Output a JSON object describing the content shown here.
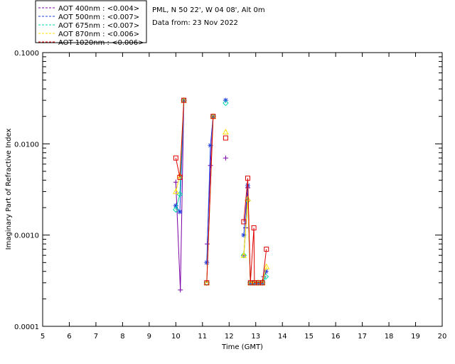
{
  "chart_data": {
    "type": "line",
    "title": "",
    "xlabel": "Time (GMT)",
    "ylabel": "Imaginary Part of Refractive Index",
    "xlim": [
      5,
      20
    ],
    "ylim": [
      0.0001,
      0.1
    ],
    "yscale": "log",
    "x_ticks": [
      "5",
      "6",
      "7",
      "8",
      "9",
      "10",
      "11",
      "12",
      "13",
      "14",
      "15",
      "16",
      "17",
      "18",
      "19",
      "20"
    ],
    "y_ticks": [
      {
        "value": 0.0001,
        "label": "0.0001"
      },
      {
        "value": 0.001,
        "label": "0.0010"
      },
      {
        "value": 0.01,
        "label": "0.0100"
      },
      {
        "value": 0.1,
        "label": "0.1000"
      }
    ],
    "info": [
      "PML, N 50 22', W 04 08', Alt 0m",
      "Data from: 23 Nov 2022"
    ],
    "series": [
      {
        "name": "AOT  400nm",
        "legend": "AOT  400nm : <0.004>",
        "color": "#7b00a8",
        "marker": "plus",
        "points": [
          [
            10.0,
            0.0038
          ],
          [
            10.17,
            0.00025
          ],
          [
            10.3,
            0.03
          ],
          null,
          [
            11.18,
            0.0008
          ],
          [
            11.3,
            0.0058
          ],
          [
            11.4,
            0.02
          ],
          null,
          [
            11.87,
            0.007
          ],
          null,
          [
            12.55,
            0.0006
          ],
          [
            12.62,
            0.0012
          ],
          [
            12.7,
            0.0033
          ],
          [
            12.8,
            0.0003
          ],
          [
            12.92,
            0.0003
          ],
          [
            13.05,
            0.0003
          ],
          [
            13.2,
            0.0003
          ],
          [
            13.3,
            0.00035
          ],
          [
            13.38,
            0.0004
          ]
        ]
      },
      {
        "name": "AOT  500nm",
        "legend": "AOT  500nm : <0.007>",
        "color": "#1f3fe0",
        "marker": "asterisk",
        "points": [
          [
            10.0,
            0.0021
          ],
          [
            10.15,
            0.0018
          ],
          [
            10.3,
            0.03
          ],
          null,
          [
            11.16,
            0.0005
          ],
          [
            11.3,
            0.0096
          ],
          [
            11.4,
            0.02
          ],
          null,
          [
            11.87,
            0.03
          ],
          null,
          [
            12.55,
            0.001
          ],
          [
            12.7,
            0.0035
          ],
          [
            12.8,
            0.0003
          ],
          [
            12.95,
            0.0003
          ],
          [
            13.1,
            0.0003
          ],
          [
            13.25,
            0.0003
          ],
          [
            13.38,
            0.0004
          ]
        ]
      },
      {
        "name": "AOT  675nm",
        "legend": "AOT  675nm : <0.007>",
        "color": "#00d8a8",
        "marker": "diamond",
        "points": [
          [
            10.0,
            0.0019
          ],
          [
            10.15,
            0.0028
          ],
          [
            10.3,
            0.03
          ],
          null,
          [
            11.16,
            0.0003
          ],
          [
            11.4,
            0.02
          ],
          null,
          [
            11.87,
            0.028
          ],
          null,
          [
            12.55,
            0.0006
          ],
          [
            12.7,
            0.0024
          ],
          [
            12.8,
            0.0003
          ],
          [
            12.95,
            0.0003
          ],
          [
            13.1,
            0.0003
          ],
          [
            13.25,
            0.0003
          ],
          [
            13.38,
            0.00035
          ]
        ]
      },
      {
        "name": "AOT  870nm",
        "legend": "AOT  870nm : <0.006>",
        "color": "#ffdd00",
        "marker": "triangle",
        "points": [
          [
            10.0,
            0.003
          ],
          [
            10.15,
            0.0045
          ],
          [
            10.3,
            0.03
          ],
          null,
          [
            11.16,
            0.0003
          ],
          [
            11.4,
            0.02
          ],
          null,
          [
            11.87,
            0.0135
          ],
          null,
          [
            12.55,
            0.0006
          ],
          [
            12.7,
            0.0025
          ],
          [
            12.8,
            0.0003
          ],
          [
            12.95,
            0.0003
          ],
          [
            13.1,
            0.0003
          ],
          [
            13.25,
            0.0003
          ],
          [
            13.4,
            0.00045
          ]
        ]
      },
      {
        "name": "AOT 1020nm",
        "legend": "AOT 1020nm : <0.006>",
        "color": "#e00000",
        "marker": "square",
        "points": [
          [
            10.0,
            0.007
          ],
          [
            10.15,
            0.0043
          ],
          [
            10.3,
            0.03
          ],
          null,
          [
            11.16,
            0.0003
          ],
          [
            11.4,
            0.02
          ],
          null,
          [
            11.87,
            0.0116
          ],
          null,
          [
            12.55,
            0.0014
          ],
          [
            12.7,
            0.0042
          ],
          [
            12.8,
            0.0003
          ],
          [
            12.93,
            0.0012
          ],
          [
            12.95,
            0.0003
          ],
          [
            13.1,
            0.0003
          ],
          [
            13.25,
            0.0003
          ],
          [
            13.4,
            0.0007
          ]
        ]
      }
    ]
  }
}
